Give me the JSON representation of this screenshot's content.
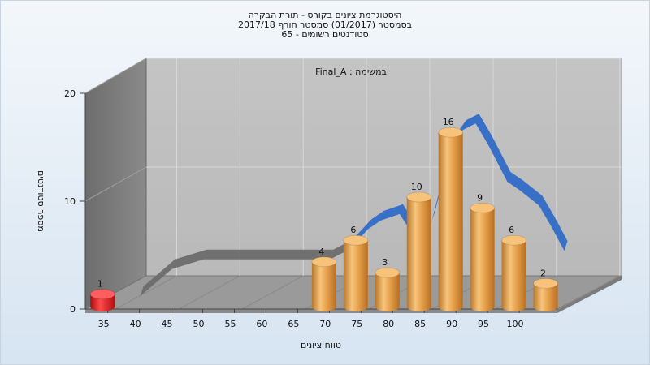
{
  "titles": [
    "היסטוגרמת ציונים בקורס - תורת הבקרה",
    "בסמסטר  (01/2017)  סמסטר חורף 2017/18",
    "סטודנטים רשומים - 65"
  ],
  "chart_data": {
    "type": "bar",
    "subtitle": "Final_A : במשימה",
    "xlabel": "טווח ציונים",
    "ylabel": "מספר סטודנטים",
    "ylim": [
      0,
      20
    ],
    "yticks": [
      0,
      10,
      20
    ],
    "xticks": [
      35,
      40,
      45,
      50,
      55,
      60,
      65,
      70,
      75,
      80,
      85,
      90,
      95,
      100
    ],
    "bars": [
      {
        "x": 35,
        "value": 1,
        "color": "#e32222"
      },
      {
        "x": 70,
        "value": 4,
        "color": "#e9a84e"
      },
      {
        "x": 75,
        "value": 6,
        "color": "#e9a84e"
      },
      {
        "x": 80,
        "value": 3,
        "color": "#e9a84e"
      },
      {
        "x": 85,
        "value": 10,
        "color": "#e9a84e"
      },
      {
        "x": 90,
        "value": 16,
        "color": "#e9a84e"
      },
      {
        "x": 95,
        "value": 9,
        "color": "#e9a84e"
      },
      {
        "x": 100,
        "value": 6,
        "color": "#e9a84e"
      },
      {
        "x": 105,
        "value": 2,
        "color": "#e9a84e"
      }
    ],
    "trend": {
      "x": [
        37,
        42,
        47,
        52,
        57,
        62,
        67,
        70,
        73,
        75,
        78,
        80,
        82,
        83,
        85,
        87,
        88,
        90,
        92,
        95,
        97,
        100,
        102,
        104
      ],
      "y": [
        0,
        2.5,
        3.4,
        3.4,
        3.4,
        3.4,
        3.4,
        4.3,
        6.2,
        7.0,
        7.6,
        5.8,
        5.2,
        6.8,
        11.4,
        14.6,
        15.4,
        16.0,
        14.0,
        10.6,
        9.8,
        8.4,
        6.4,
        4.2
      ],
      "color_low": "#6b6b6b",
      "color_high": "#2f6bc6"
    },
    "grid": true,
    "legend": "none"
  }
}
